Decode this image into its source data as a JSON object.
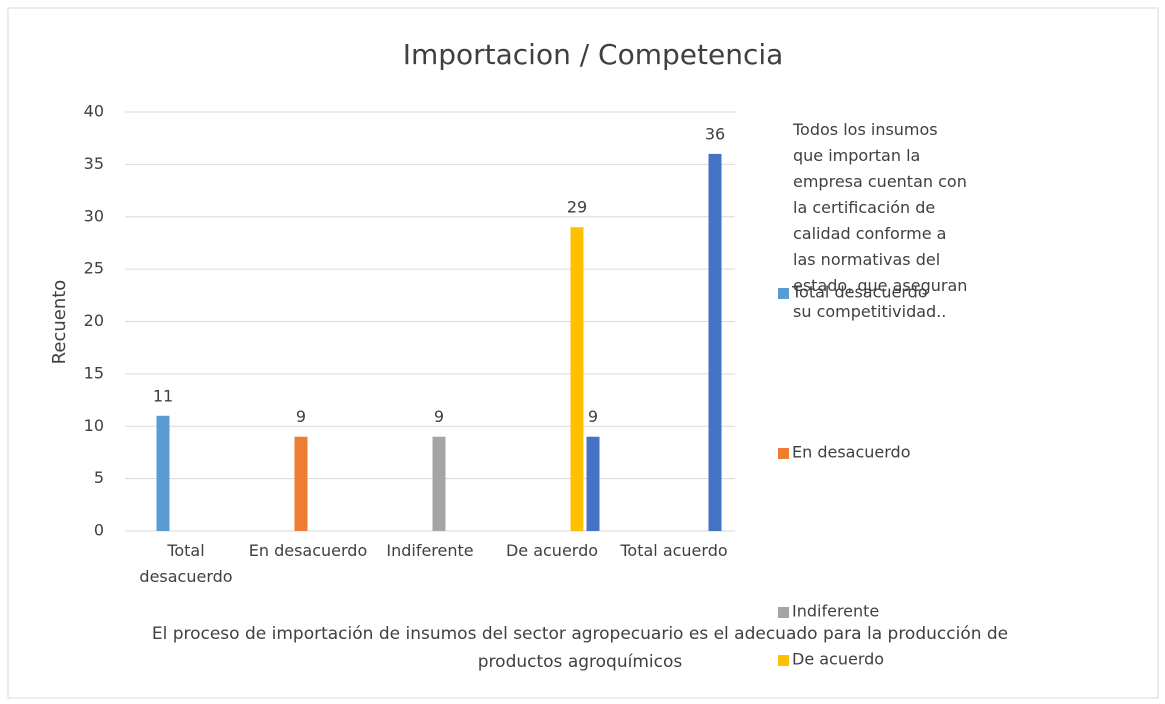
{
  "chart_data": {
    "type": "bar",
    "title": "Importacion / Competencia",
    "annotation": "Todos los insumos que importan la empresa cuentan con la certificación de calidad conforme a las normativas del estado, que aseguran su competitividad..",
    "x_label": "El proceso de importación de insumos del sector agropecuario es el adecuado para la producción de productos agroquímicos",
    "y_label": "Recuento",
    "categories": [
      "Total desacuerdo",
      "En desacuerdo",
      "Indiferente",
      "De acuerdo",
      "Total acuerdo"
    ],
    "series": [
      {
        "name": "Total desacuerdo",
        "color": "#5b9bd5",
        "values": [
          11,
          null,
          null,
          null,
          null
        ]
      },
      {
        "name": "En desacuerdo",
        "color": "#ed7d31",
        "values": [
          null,
          9,
          null,
          null,
          null
        ]
      },
      {
        "name": "Indiferente",
        "color": "#a5a5a5",
        "values": [
          null,
          null,
          9,
          null,
          null
        ]
      },
      {
        "name": "De acuerdo",
        "color": "#ffc000",
        "values": [
          null,
          null,
          null,
          29,
          null
        ]
      },
      {
        "color": "#4472c4",
        "values": [
          null,
          null,
          null,
          9,
          36
        ]
      }
    ],
    "ylim": [
      0,
      40
    ],
    "yticks": [
      0,
      5,
      10,
      15,
      20,
      25,
      30,
      35,
      40
    ],
    "grid": true,
    "legend": "right"
  }
}
